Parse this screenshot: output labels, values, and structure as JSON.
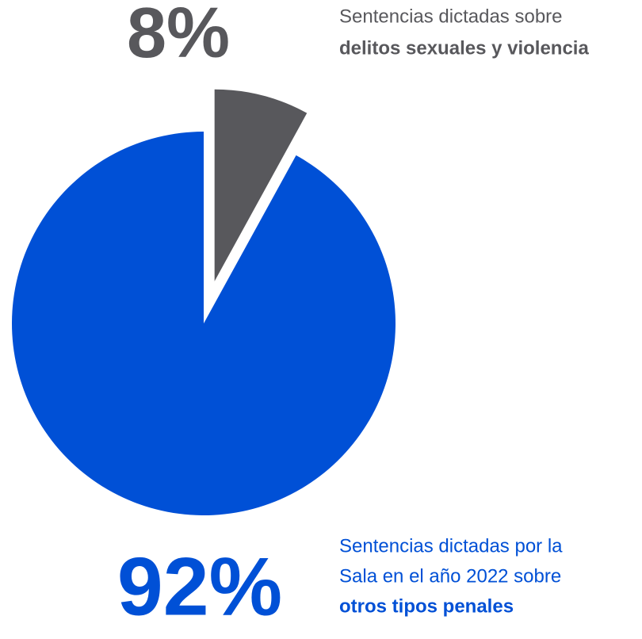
{
  "chart_data": {
    "type": "pie",
    "categories": [
      "Sentencias dictadas sobre delitos sexuales y violencia",
      "Sentencias dictadas por la Sala en el año 2022 sobre otros tipos penales"
    ],
    "label_lines": [
      [
        {
          "text": "Sentencias dictadas sobre",
          "bold": false
        },
        {
          "text": "delitos sexuales y violencia",
          "bold": true
        }
      ],
      [
        {
          "text": "Sentencias dictadas por la",
          "bold": false
        },
        {
          "text": "Sala en el año 2022 sobre",
          "bold": false
        },
        {
          "text": "otros tipos penales",
          "bold": true
        }
      ]
    ],
    "values": [
      8,
      92
    ],
    "value_labels": [
      "8%",
      "92%"
    ],
    "colors": [
      "#58585c",
      "#0050d6"
    ],
    "exploded": [
      true,
      false
    ]
  }
}
